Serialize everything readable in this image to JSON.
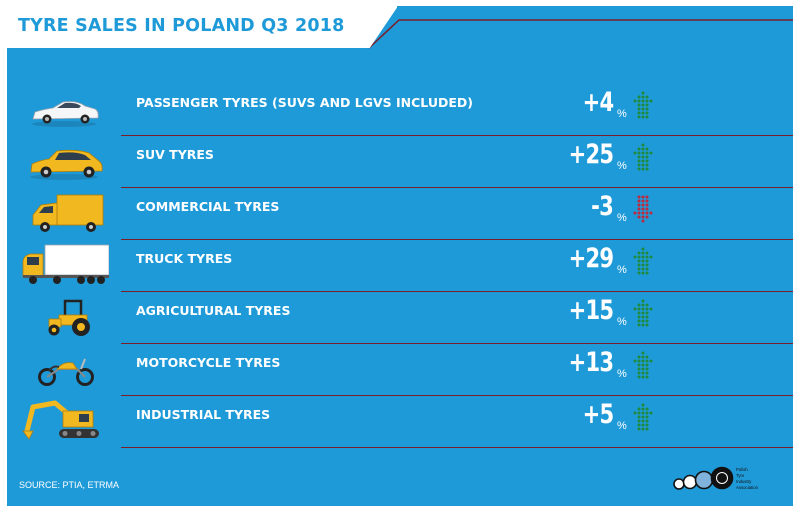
{
  "title": "TYRE SALES IN POLAND Q3 2018",
  "source": "SOURCE: PTIA, ETRMA",
  "logo_text": [
    "Polish",
    "Tyre",
    "Industry",
    "Association"
  ],
  "colors": {
    "background": "#1f9ad8",
    "up_arrow": "#1e8a3e",
    "down_arrow": "#c0283c",
    "separator": "#7a1e2a",
    "vehicle_yellow": "#f2b81f"
  },
  "chart_data": {
    "type": "table",
    "title": "TYRE SALES IN POLAND Q3 2018",
    "unit": "%",
    "rows": [
      {
        "label": "PASSENGER TYRES (SUVS AND LGVS INCLUDED)",
        "value": 4,
        "display": "+4",
        "direction": "up",
        "icon": "passenger-car-icon"
      },
      {
        "label": "SUV TYRES",
        "value": 25,
        "display": "+25",
        "direction": "up",
        "icon": "suv-icon"
      },
      {
        "label": "COMMERCIAL TYRES",
        "value": -3,
        "display": "-3",
        "direction": "down",
        "icon": "delivery-truck-icon"
      },
      {
        "label": "TRUCK TYRES",
        "value": 29,
        "display": "+29",
        "direction": "up",
        "icon": "semi-truck-icon"
      },
      {
        "label": "AGRICULTURAL TYRES",
        "value": 15,
        "display": "+15",
        "direction": "up",
        "icon": "tractor-icon"
      },
      {
        "label": "MOTORCYCLE TYRES",
        "value": 13,
        "display": "+13",
        "direction": "up",
        "icon": "motorcycle-icon"
      },
      {
        "label": "INDUSTRIAL TYRES",
        "value": 5,
        "display": "+5",
        "direction": "up",
        "icon": "excavator-icon"
      }
    ]
  }
}
